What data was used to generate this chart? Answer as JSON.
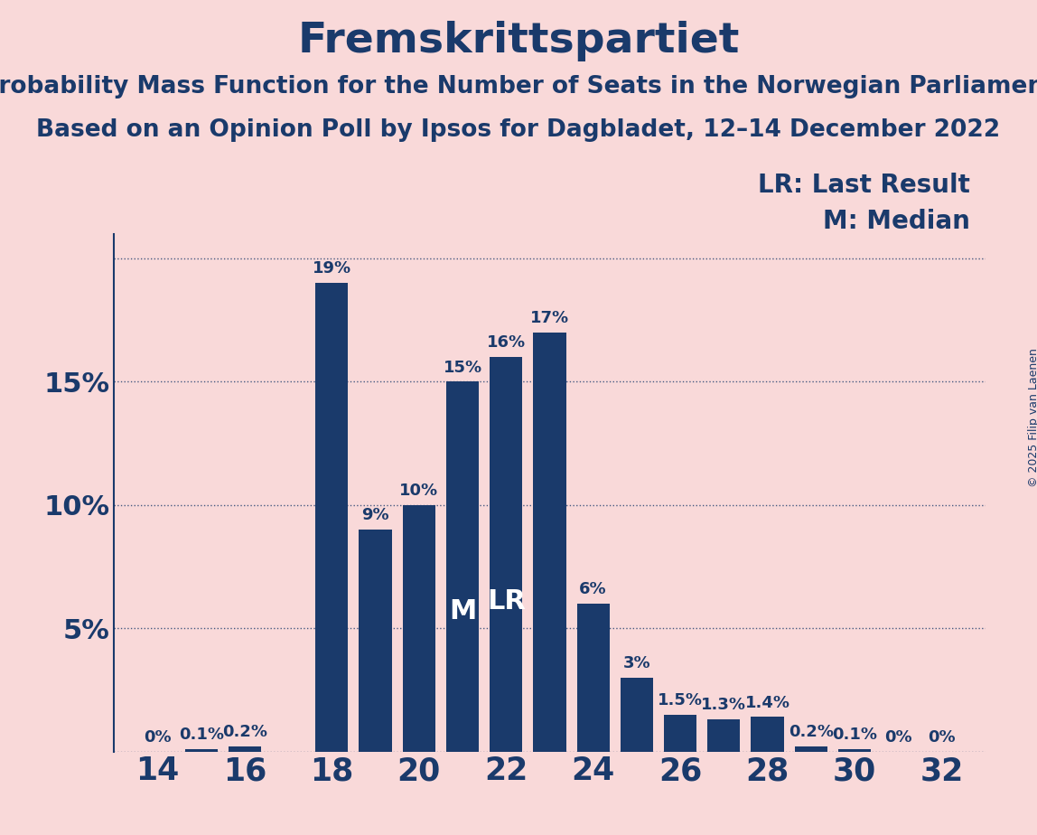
{
  "title": "Fremskrittspartiet",
  "subtitle1": "Probability Mass Function for the Number of Seats in the Norwegian Parliament",
  "subtitle2": "Based on an Opinion Poll by Ipsos for Dagbladet, 12–14 December 2022",
  "copyright": "© 2025 Filip van Laenen",
  "seats": [
    14,
    15,
    16,
    17,
    18,
    19,
    20,
    21,
    22,
    23,
    24,
    25,
    26,
    27,
    28,
    29,
    30,
    31,
    32
  ],
  "values": [
    0.0,
    0.1,
    0.2,
    0.0,
    19.0,
    9.0,
    10.0,
    15.0,
    16.0,
    17.0,
    6.0,
    3.0,
    1.5,
    1.3,
    1.4,
    0.2,
    0.1,
    0.0,
    0.0
  ],
  "labels": [
    "0%",
    "0.1%",
    "0.2%",
    "",
    "19%",
    "9%",
    "10%",
    "15%",
    "16%",
    "17%",
    "6%",
    "3%",
    "1.5%",
    "1.3%",
    "1.4%",
    "0.2%",
    "0.1%",
    "0%",
    "0%"
  ],
  "show_label": [
    true,
    true,
    true,
    false,
    true,
    true,
    true,
    true,
    true,
    true,
    true,
    true,
    true,
    true,
    true,
    true,
    true,
    true,
    true
  ],
  "bar_color": "#1a3a6b",
  "background_color": "#f9d9d9",
  "text_color": "#1a3a6b",
  "median_seat": 21,
  "lr_seat": 22,
  "xtick_positions": [
    14,
    16,
    18,
    20,
    22,
    24,
    26,
    28,
    30,
    32
  ],
  "ylim_max": 21.0,
  "legend_lr": "LR: Last Result",
  "legend_m": "M: Median",
  "title_fontsize": 34,
  "subtitle_fontsize": 19,
  "bar_label_fontsize": 13,
  "ytick_fontsize": 22,
  "xtick_fontsize": 25,
  "legend_fontsize": 20,
  "copyright_fontsize": 9,
  "ml_fontsize": 22
}
